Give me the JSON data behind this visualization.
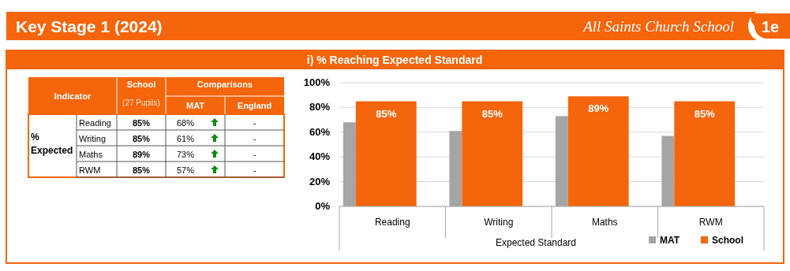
{
  "chart_data": [
    {
      "type": "other",
      "title": "Key Stage 1 (2024)",
      "subtitle": "All Saints Church School",
      "annotations": [
        "1e",
        "i) % Reaching Expected Standard"
      ]
    },
    {
      "type": "other",
      "annotations": [
        "Indicator",
        "(27 Pupils)",
        "Comparisons",
        "% Expected"
      ],
      "categories": [
        "Reading",
        "Writing",
        "Maths",
        "RWM"
      ],
      "series": [
        {
          "name": "School",
          "values": [
            85,
            85,
            89,
            85
          ],
          "value_labels": [
            "85%",
            "85%",
            "89%",
            "85%"
          ]
        },
        {
          "name": "MAT",
          "values": [
            68,
            61,
            73,
            57
          ],
          "value_labels": [
            "68%",
            "61%",
            "73%",
            "57%"
          ]
        },
        {
          "name": "England",
          "values": [
            null,
            null,
            null,
            null
          ],
          "value_labels": [
            "-",
            "-",
            "-",
            "-"
          ]
        }
      ]
    },
    {
      "type": "bar",
      "xlabel": "Expected Standard",
      "categories": [
        "Reading",
        "Writing",
        "Maths",
        "RWM"
      ],
      "series": [
        {
          "name": "MAT",
          "color": "#a5a5a5",
          "values": [
            68,
            61,
            73,
            57
          ]
        },
        {
          "name": "School",
          "color": "#f4650c",
          "values": [
            85,
            85,
            89,
            85
          ],
          "value_labels": [
            "85%",
            "85%",
            "89%",
            "85%"
          ]
        }
      ],
      "ylim": [
        0,
        100
      ],
      "yticks": [
        {
          "value": 0,
          "label": "0%"
        },
        {
          "value": 20,
          "label": "20%"
        },
        {
          "value": 40,
          "label": "40%"
        },
        {
          "value": 60,
          "label": "60%"
        },
        {
          "value": 80,
          "label": "80%"
        },
        {
          "value": 100,
          "label": "100%"
        }
      ],
      "grid": "y",
      "legend": "bottom right"
    }
  ]
}
